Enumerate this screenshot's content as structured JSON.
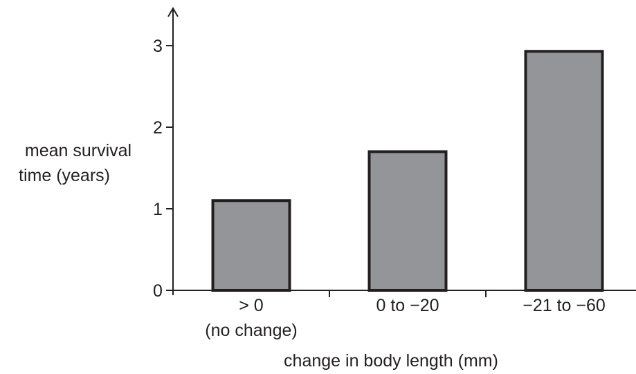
{
  "chart_data": {
    "type": "bar",
    "categories": [
      "> 0",
      "0 to −20",
      "−21 to −60"
    ],
    "category_sublabels": [
      "(no change)",
      "",
      ""
    ],
    "values": [
      1.1,
      1.7,
      2.93
    ],
    "xlabel": "change in body length (mm)",
    "ylabel_lines": [
      "mean survival",
      "time (years)"
    ],
    "yticks": [
      "0",
      "1",
      "2",
      "3"
    ],
    "ylim": [
      0,
      3
    ],
    "grid": false,
    "legend": "none",
    "colors": {
      "bar_fill": "#939598",
      "bar_stroke": "#231f20",
      "axis": "#231f20"
    }
  }
}
